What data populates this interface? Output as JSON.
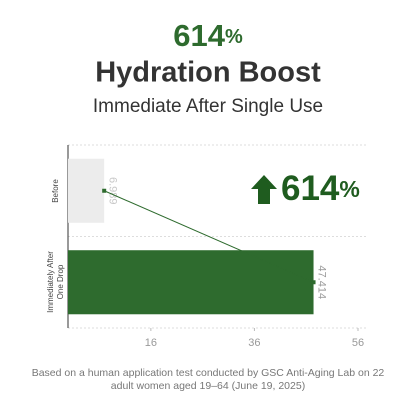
{
  "chart_data": {
    "type": "bar",
    "orientation": "horizontal",
    "headline": {
      "number": "614",
      "unit": "%"
    },
    "title": "Hydration Boost",
    "subtitle": "Immediate After Single Use",
    "categories": [
      "Before",
      "Immediately After One Drop"
    ],
    "values": [
      6.989,
      47.414
    ],
    "colors": [
      "#ececec",
      "#2e6b2e"
    ],
    "value_label_colors": [
      "#c8c8c8",
      "#9a9a9a"
    ],
    "line_color": "#2e6b2e",
    "xlim": [
      0,
      56
    ],
    "xticks": [
      16,
      36,
      56
    ],
    "grid": true,
    "annotation": {
      "number": "614",
      "unit": "%",
      "color": "#1f5c1f"
    },
    "footnote": [
      "Based on a human application test conducted by GSC Anti-Aging Lab on 22",
      "adult women aged 19–64 (June 19, 2025)"
    ]
  }
}
